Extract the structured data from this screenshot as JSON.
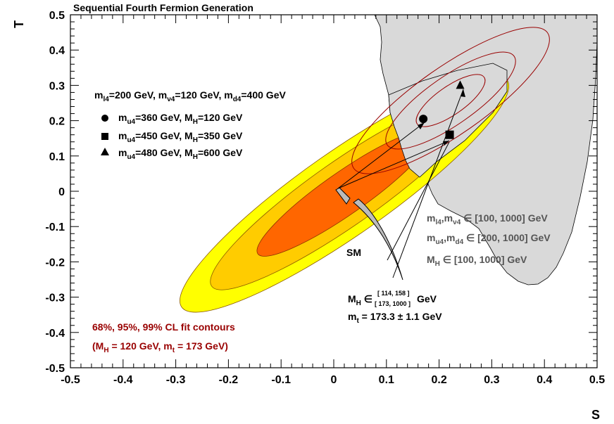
{
  "chart_data": {
    "type": "scatter",
    "title": "Sequential Fourth Fermion Generation",
    "xlabel": "S",
    "ylabel": "T",
    "xlim": [
      -0.5,
      0.5
    ],
    "ylim": [
      -0.5,
      0.5
    ],
    "x_ticks": [
      "-0.5",
      "-0.4",
      "-0.3",
      "-0.2",
      "-0.1",
      "0",
      "0.1",
      "0.2",
      "0.3",
      "0.4",
      "0.5"
    ],
    "y_ticks": [
      "-0.5",
      "-0.4",
      "-0.3",
      "-0.2",
      "-0.1",
      "0",
      "0.1",
      "0.2",
      "0.3",
      "0.4",
      "0.5"
    ],
    "fit_ellipse": {
      "center": [
        0.01,
        0.03
      ],
      "cl_levels": [
        "68%",
        "95%",
        "99%"
      ],
      "colors": [
        "#ff6600",
        "#ffcc00",
        "#ffff00"
      ],
      "legend_line1": "68%, 95%, 99% CL fit contours",
      "legend_line2": "(M_H = 120 GeV, m_t = 173 GeV)"
    },
    "shifted_ellipse_color": "#990000",
    "scan_region_color": "#d9d9d9",
    "points": [
      {
        "marker": "circle",
        "x": 0.17,
        "y": 0.205,
        "label": "m_u4=360 GeV, M_H=120 GeV"
      },
      {
        "marker": "square",
        "x": 0.22,
        "y": 0.16,
        "label": "m_u4=450 GeV, M_H=350 GeV"
      },
      {
        "marker": "triangle",
        "x": 0.24,
        "y": 0.3,
        "label": "m_u4=480 GeV, M_H=600 GeV"
      }
    ],
    "legend_header": "m_l4=200 GeV, m_ν4=120 GeV, m_d4=400 GeV",
    "scan_ranges": [
      "m_l4,m_ν4 ∈ [100, 1000] GeV",
      "m_u4,m_d4 ∈ [200, 1000] GeV",
      "M_H ∈ [100, 1000] GeV"
    ],
    "sm_label": "SM",
    "sm_mh_range": "M_H ∈ [114, 158] [173, 1000] GeV",
    "sm_mt": "m_t = 173.3 ± 1.1 GeV"
  },
  "text": {
    "title": "Sequential Fourth Fermion Generation",
    "xlabel": "S",
    "ylabel": "T",
    "sm": "SM",
    "hdr_a": "m",
    "hdr_b": "=200 GeV, m",
    "hdr_c": "=120 GeV, m",
    "hdr_d": "=400 GeV",
    "sub_l4": "l4",
    "sub_nu4": "ν4",
    "sub_d4": "d4",
    "sub_u4": "u4",
    "sub_H": "H",
    "m": "m",
    "M": "M",
    "p1_mid": "=360 GeV, M",
    "p1_end": "=120 GeV",
    "p2_mid": "=450 GeV, M",
    "p2_end": "=350 GeV",
    "p3_mid": "=480 GeV, M",
    "p3_end": "=600 GeV",
    "r1_mid": ",m",
    "r1_end": " ∈ [100, 1000] GeV",
    "r2_mid": ",m",
    "r2_end": " ∈ [200, 1000] GeV",
    "r3_end": " ∈ [100, 1000] GeV",
    "mh_in": " ∈ ",
    "mh_r1": "[ 114, 158 ]",
    "mh_r2": "[ 173, 1000 ]",
    "mh_gev": " GeV",
    "mt": "m",
    "mt_sub": "t",
    "mt_val": " = 173.3 ± 1.1 GeV",
    "cl1": "68%, 95%, 99% CL fit contours",
    "cl2a": "(M",
    "cl2b": " = 120 GeV, m",
    "cl2c": " = 173 GeV)"
  }
}
